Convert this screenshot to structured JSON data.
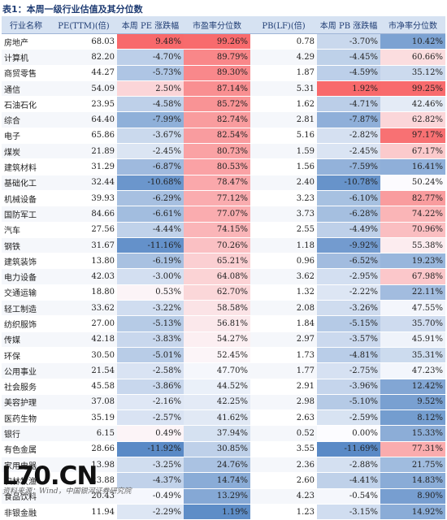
{
  "title": "表1：本周一级行业估值及其分位数",
  "headers": [
    "行业名称",
    "PE(TTM)(倍)",
    "本周 PE 涨跌幅",
    "市盈率分位数",
    "PB(LF)(倍)",
    "本周 PB 涨跌幅",
    "市净率分位数"
  ],
  "rows": [
    [
      "房地产",
      "68.03",
      "9.48%",
      "99.26%",
      "0.78",
      "-3.70%",
      "10.42%"
    ],
    [
      "计算机",
      "82.20",
      "-4.70%",
      "89.79%",
      "4.29",
      "-4.45%",
      "60.66%"
    ],
    [
      "商贸零售",
      "44.27",
      "-5.73%",
      "89.30%",
      "1.87",
      "-4.59%",
      "35.12%"
    ],
    [
      "通信",
      "54.09",
      "2.50%",
      "87.14%",
      "5.31",
      "1.92%",
      "99.25%"
    ],
    [
      "石油石化",
      "23.95",
      "-4.58%",
      "85.72%",
      "1.62",
      "-4.71%",
      "42.46%"
    ],
    [
      "综合",
      "64.40",
      "-7.99%",
      "82.74%",
      "2.81",
      "-7.87%",
      "62.82%"
    ],
    [
      "电子",
      "65.86",
      "-3.67%",
      "82.54%",
      "5.16",
      "-2.82%",
      "97.17%"
    ],
    [
      "煤炭",
      "21.89",
      "-2.45%",
      "80.73%",
      "1.59",
      "-2.45%",
      "67.17%"
    ],
    [
      "建筑材料",
      "31.29",
      "-6.87%",
      "80.53%",
      "1.56",
      "-7.59%",
      "16.41%"
    ],
    [
      "基础化工",
      "32.44",
      "-10.68%",
      "78.47%",
      "2.40",
      "-10.78%",
      "50.24%"
    ],
    [
      "机械设备",
      "39.93",
      "-6.29%",
      "77.12%",
      "3.23",
      "-6.10%",
      "82.77%"
    ],
    [
      "国防军工",
      "84.66",
      "-6.61%",
      "77.07%",
      "3.73",
      "-6.28%",
      "74.22%"
    ],
    [
      "汽车",
      "27.56",
      "-4.44%",
      "74.15%",
      "2.55",
      "-4.49%",
      "70.96%"
    ],
    [
      "钢铁",
      "31.67",
      "-11.16%",
      "70.26%",
      "1.18",
      "-9.92%",
      "55.38%"
    ],
    [
      "建筑装饰",
      "13.80",
      "-6.19%",
      "65.21%",
      "0.96",
      "-6.52%",
      "19.23%"
    ],
    [
      "电力设备",
      "42.03",
      "-3.00%",
      "64.08%",
      "3.62",
      "-2.95%",
      "67.98%"
    ],
    [
      "交通运输",
      "18.80",
      "0.53%",
      "62.70%",
      "1.32",
      "-2.22%",
      "22.11%"
    ],
    [
      "轻工制造",
      "33.62",
      "-3.22%",
      "58.58%",
      "2.08",
      "-3.26%",
      "47.55%"
    ],
    [
      "纺织服饰",
      "27.00",
      "-5.13%",
      "56.81%",
      "1.84",
      "-5.15%",
      "35.70%"
    ],
    [
      "传媒",
      "42.18",
      "-3.83%",
      "54.27%",
      "2.97",
      "-3.57%",
      "45.91%"
    ],
    [
      "环保",
      "30.50",
      "-5.01%",
      "52.45%",
      "1.73",
      "-4.81%",
      "35.31%"
    ],
    [
      "公用事业",
      "21.54",
      "-2.58%",
      "47.70%",
      "1.77",
      "-2.75%",
      "47.23%"
    ],
    [
      "社会服务",
      "45.58",
      "-3.86%",
      "44.52%",
      "2.91",
      "-3.96%",
      "12.42%"
    ],
    [
      "美容护理",
      "37.08",
      "-2.16%",
      "42.25%",
      "2.98",
      "-5.10%",
      "9.52%"
    ],
    [
      "医药生物",
      "35.19",
      "-2.57%",
      "41.62%",
      "2.63",
      "-2.59%",
      "8.12%"
    ],
    [
      "银行",
      "6.15",
      "0.49%",
      "37.94%",
      "0.52",
      "0.00%",
      "15.33%"
    ],
    [
      "有色金属",
      "28.66",
      "-11.92%",
      "30.85%",
      "3.55",
      "-11.69%",
      "77.31%"
    ],
    [
      "家用电器",
      "13.98",
      "-3.25%",
      "24.76%",
      "2.36",
      "-2.88%",
      "21.75%"
    ],
    [
      "农林牧渔",
      "23.88",
      "-4.37%",
      "14.74%",
      "2.60",
      "-4.41%",
      "14.83%"
    ],
    [
      "食品饮料",
      "20.43",
      "-0.49%",
      "13.29%",
      "4.23",
      "-0.54%",
      "8.90%"
    ],
    [
      "非银金融",
      "11.94",
      "-2.29%",
      "1.19%",
      "1.23",
      "-3.15%",
      "14.92%"
    ]
  ],
  "source": "资料来源：Wind，中国银河证券研究院",
  "watermark": "L70.CN",
  "colors": {
    "header_bg": "#d6e2f2",
    "header_text": "#1f3c73",
    "positive_max": "#f8696b",
    "negative_max": "#5a8ac6",
    "neutral": "#fcfcff"
  }
}
